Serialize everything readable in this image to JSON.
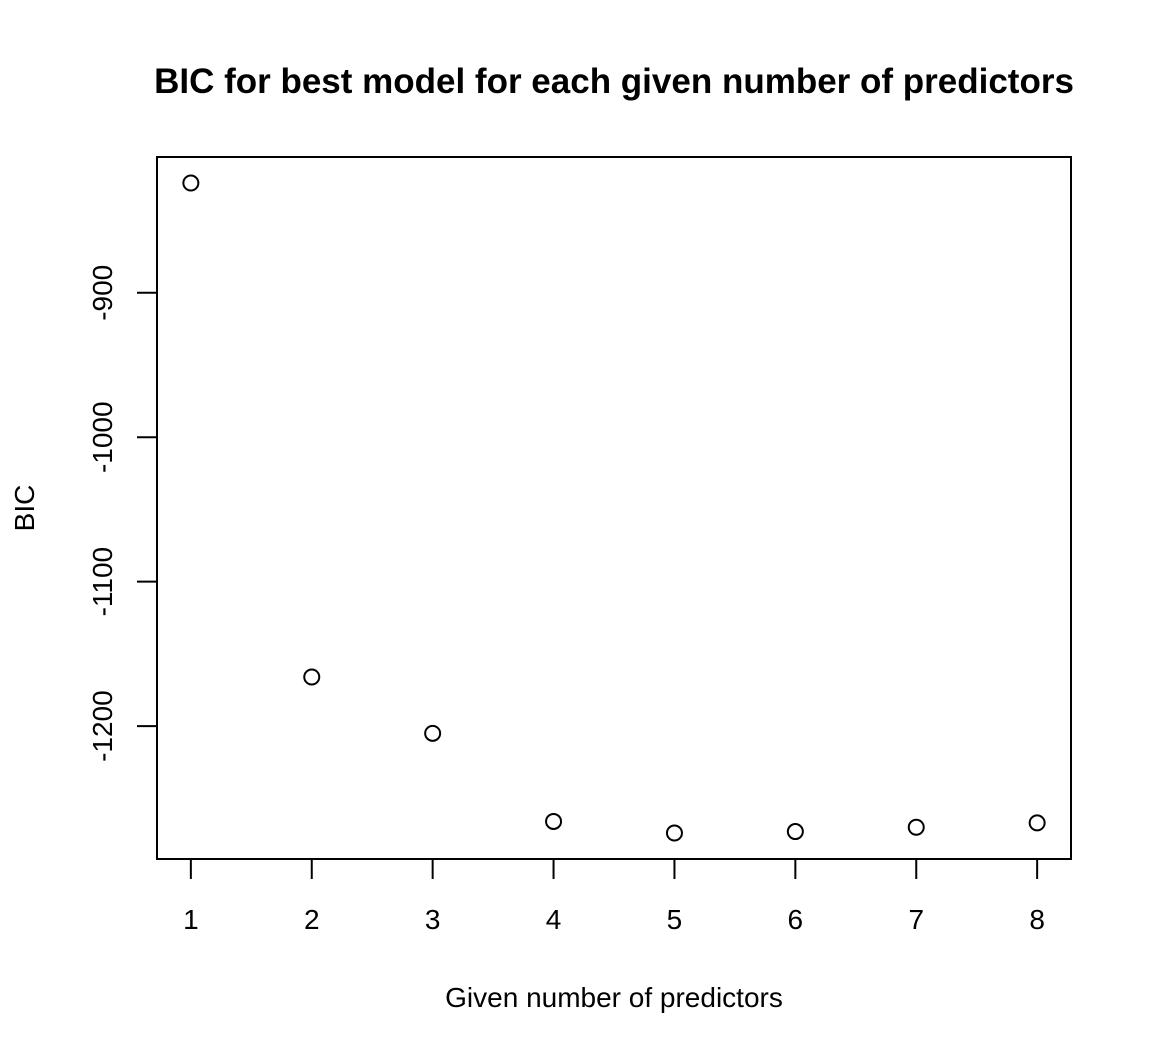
{
  "chart_data": {
    "type": "scatter",
    "title": "BIC for best model for each given number of predictors",
    "xlabel": "Given number of predictors",
    "ylabel": "BIC",
    "x": [
      1,
      2,
      3,
      4,
      5,
      6,
      7,
      8
    ],
    "y": [
      -824,
      -1166,
      -1205,
      -1266,
      -1274,
      -1273,
      -1270,
      -1267
    ],
    "xticks": [
      "1",
      "2",
      "3",
      "4",
      "5",
      "6",
      "7",
      "8"
    ],
    "yticks": [
      "-900",
      "-1000",
      "-1100",
      "-1200"
    ],
    "xlim": [
      0.72,
      8.28
    ],
    "ylim": [
      -1292,
      -806
    ],
    "grid": false,
    "marker": "open-circle",
    "colors": {
      "marker": "#000000",
      "frame": "#000000",
      "background": "#ffffff"
    }
  }
}
